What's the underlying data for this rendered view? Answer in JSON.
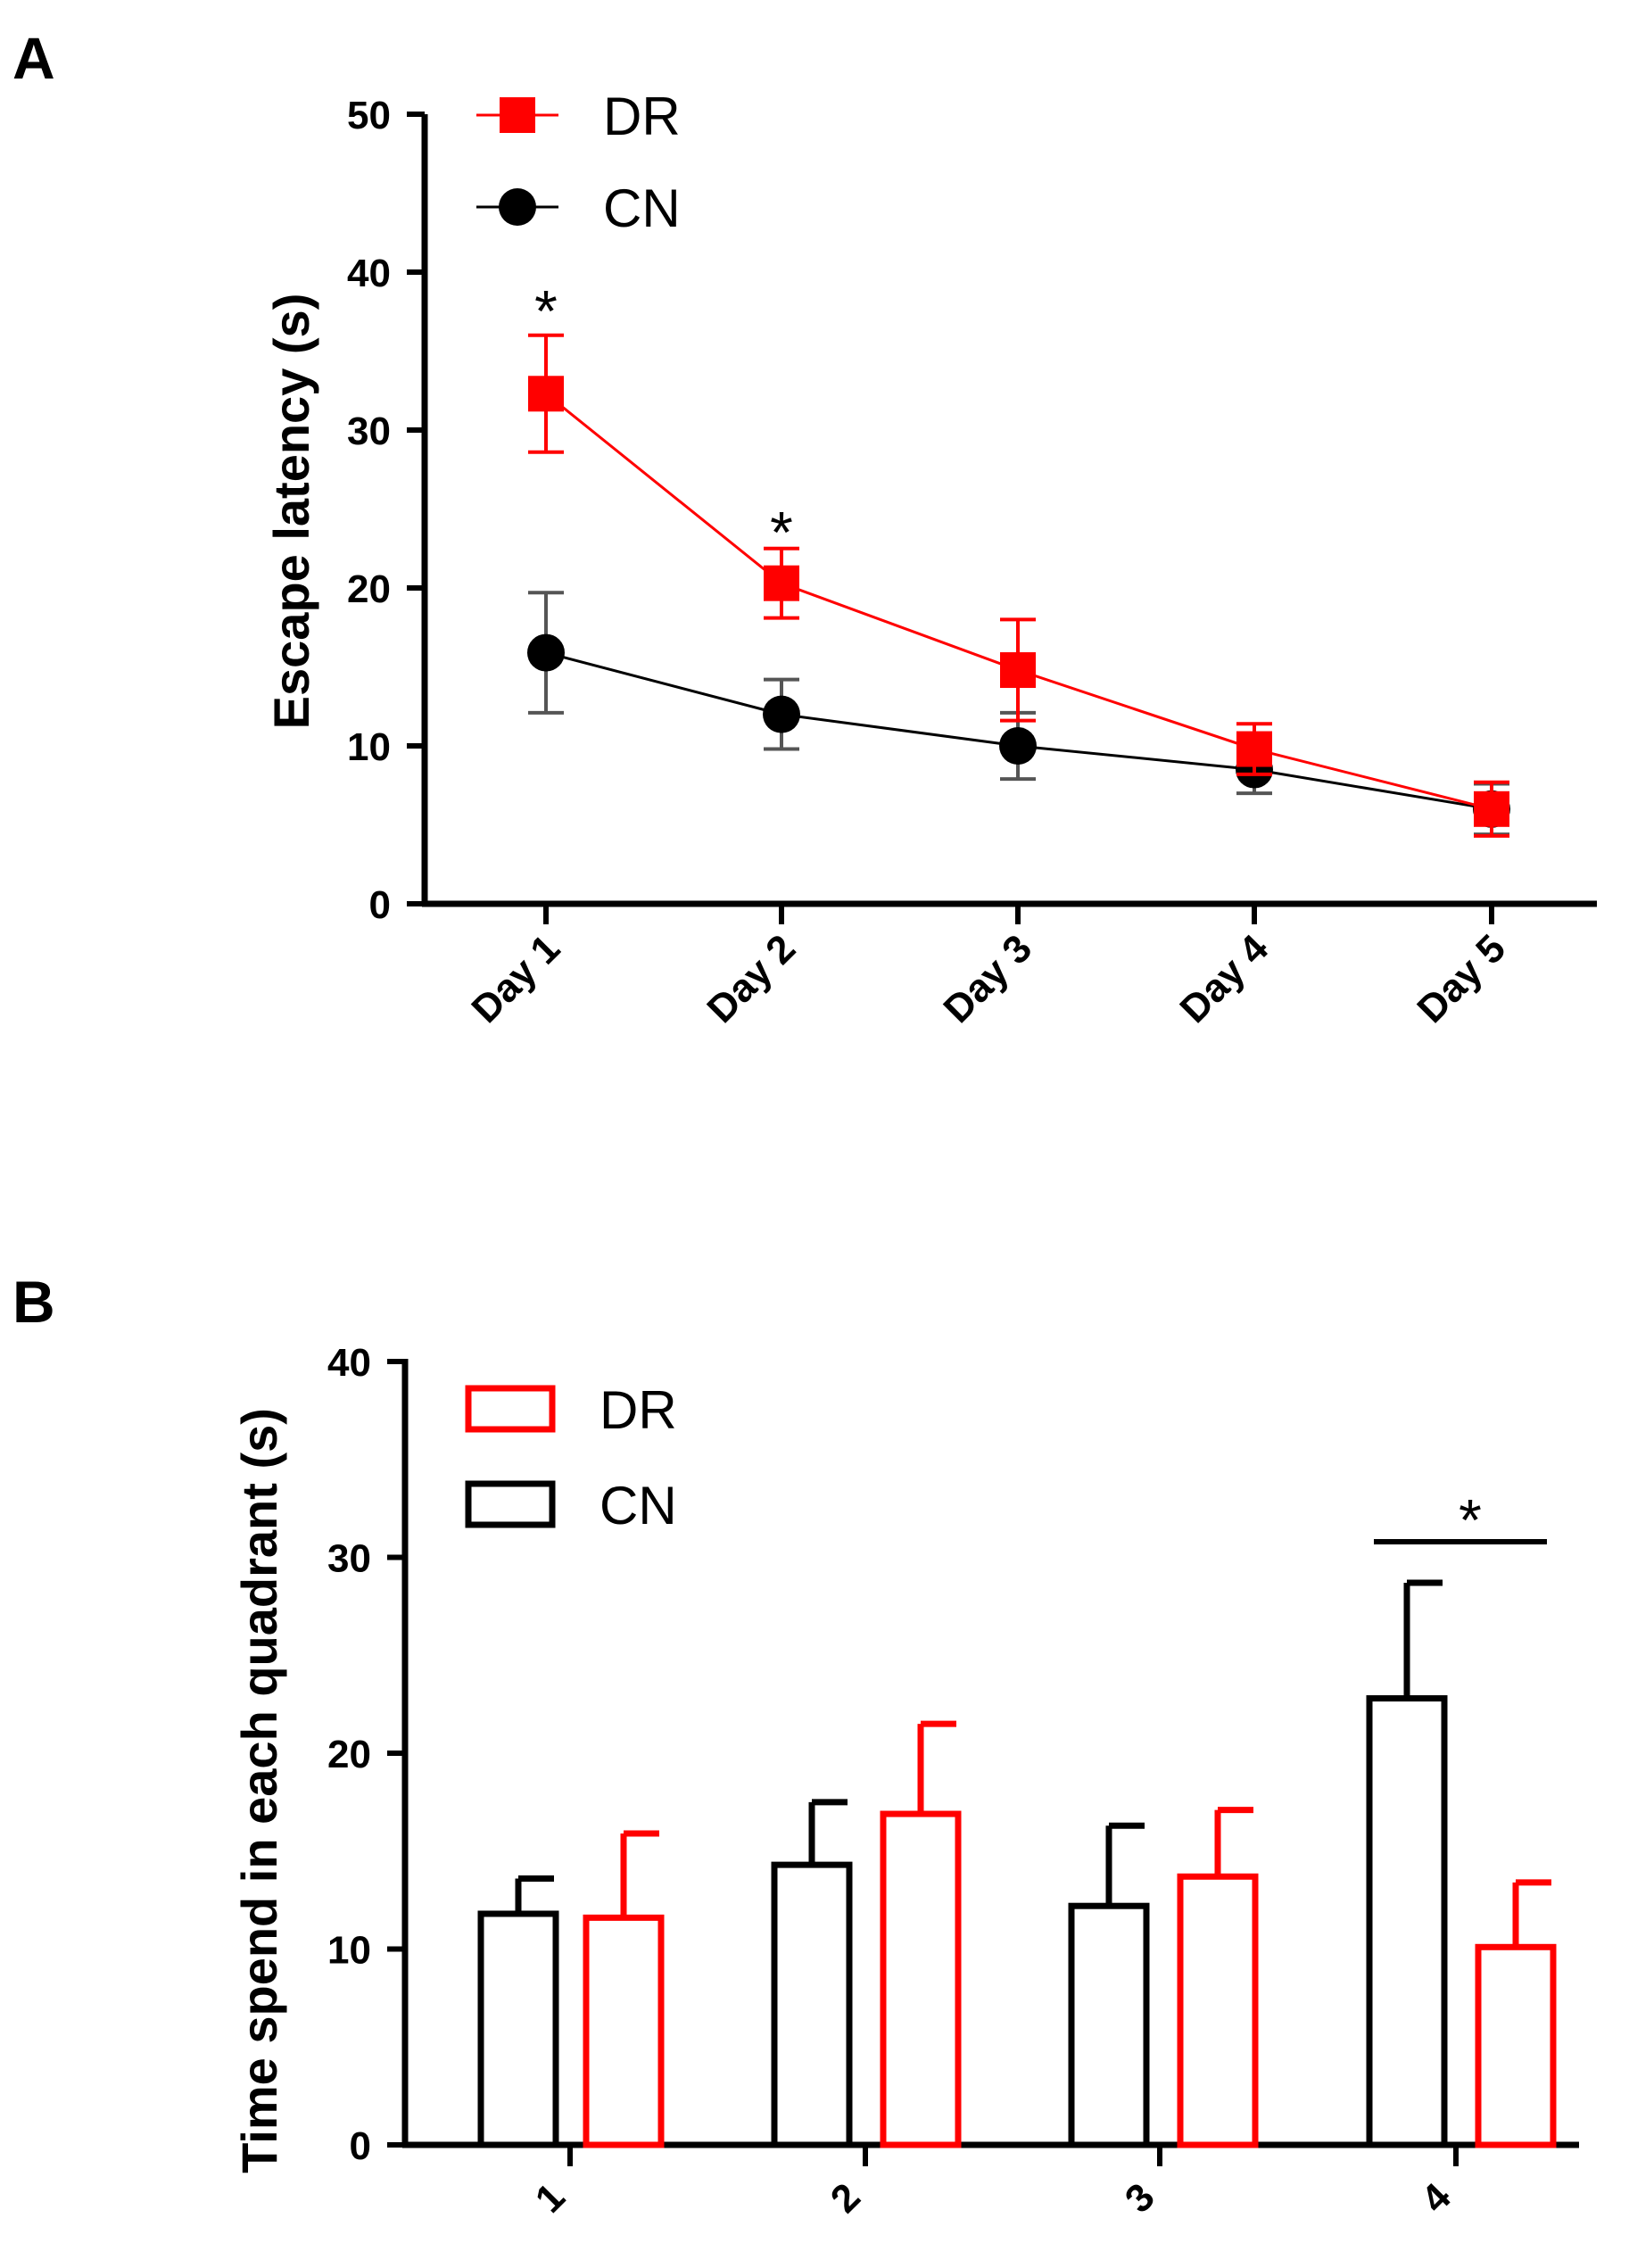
{
  "chart_data": [
    {
      "panel": "A",
      "type": "line",
      "categories": [
        "Day 1",
        "Day 2",
        "Day 3",
        "Day 4",
        "Day 5"
      ],
      "ylabel": "Escape latency (s)",
      "ylim": [
        0,
        50
      ],
      "yticks": [
        "0",
        "10",
        "20",
        "30",
        "40",
        "50"
      ],
      "legend": {
        "placement": "top-left"
      },
      "series": [
        {
          "name": "DR",
          "color": "#ff0000",
          "marker": "square",
          "values": [
            32.3,
            20.3,
            14.8,
            9.8,
            6.0
          ],
          "errors": [
            3.7,
            2.2,
            3.2,
            1.6,
            1.7
          ]
        },
        {
          "name": "CN",
          "color": "#000000",
          "marker": "circle",
          "values": [
            15.9,
            12.0,
            10.0,
            8.5,
            6.0
          ],
          "errors": [
            3.8,
            2.2,
            2.1,
            1.5,
            1.6
          ]
        }
      ],
      "annotations": [
        {
          "text": "*",
          "category": "Day 1",
          "y": 38.5
        },
        {
          "text": "*",
          "category": "Day 2",
          "y": 24.5
        }
      ]
    },
    {
      "panel": "B",
      "type": "bar",
      "categories": [
        "1",
        "2",
        "3",
        "4"
      ],
      "ylabel": "Time spend in each quadrant (s)",
      "ylim": [
        0,
        40
      ],
      "yticks": [
        "0",
        "10",
        "20",
        "30",
        "40"
      ],
      "legend": {
        "placement": "top-left"
      },
      "series": [
        {
          "name": "CN",
          "color": "#000000",
          "values": [
            11.8,
            14.3,
            12.2,
            22.8
          ],
          "errors": [
            1.8,
            3.2,
            4.1,
            5.9
          ]
        },
        {
          "name": "DR",
          "color": "#ff0000",
          "values": [
            11.6,
            16.9,
            13.7,
            10.1
          ],
          "errors": [
            4.3,
            4.6,
            3.4,
            3.3
          ]
        }
      ],
      "annotations": [
        {
          "text": "*",
          "category": "4",
          "y": 32.5,
          "bracket_y": 30.8
        }
      ]
    }
  ]
}
